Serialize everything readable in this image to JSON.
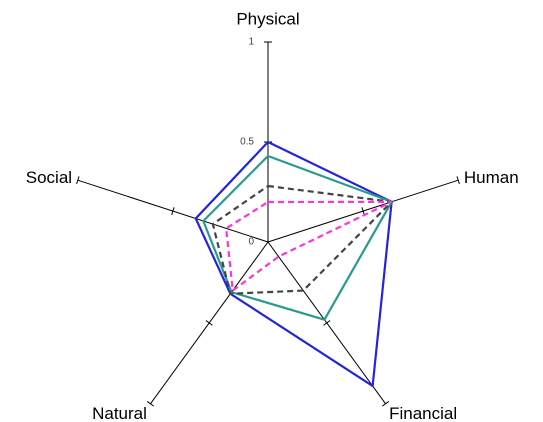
{
  "chart_data": {
    "type": "radar",
    "categories": [
      "Physical",
      "Human",
      "Financial",
      "Natural",
      "Social"
    ],
    "rlim": [
      0,
      1
    ],
    "rticks": [
      0,
      0.5,
      1
    ],
    "series": [
      {
        "color": "#2323e0",
        "dash": "solid",
        "values": [
          0.5,
          0.65,
          0.89,
          0.32,
          0.38
        ]
      },
      {
        "color": "#2a9a90",
        "dash": "solid",
        "values": [
          0.43,
          0.65,
          0.48,
          0.31,
          0.34
        ]
      },
      {
        "color": "#444444",
        "dash": "dashed",
        "values": [
          0.28,
          0.65,
          0.3,
          0.32,
          0.29
        ]
      },
      {
        "color": "#ff33dd",
        "dash": "dashed",
        "values": [
          0.2,
          0.65,
          0.09,
          0.3,
          0.22
        ]
      }
    ]
  }
}
